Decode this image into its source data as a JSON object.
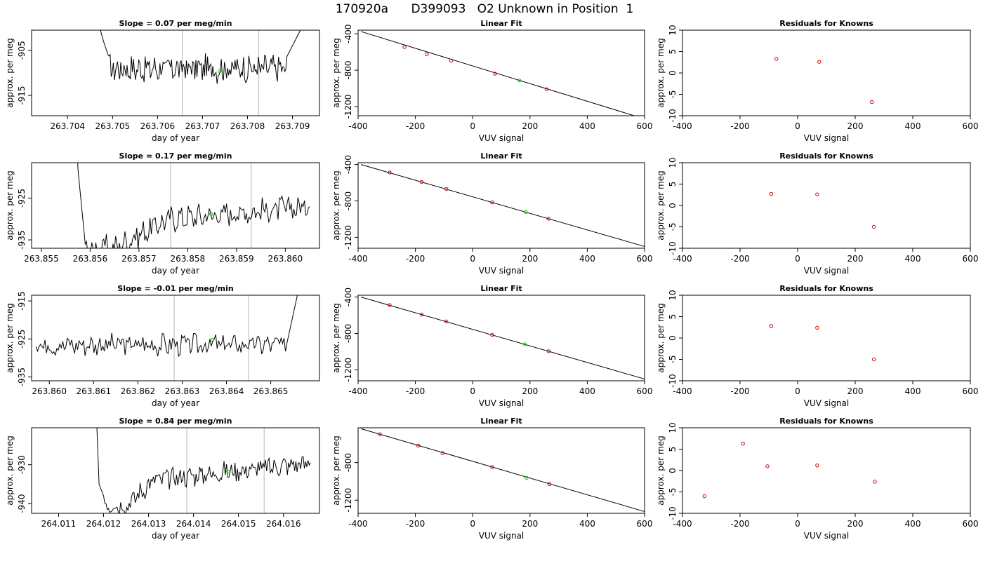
{
  "page_title": "170920a      D399093   O2 Unknown in Position  1",
  "colors": {
    "series_line": "#000000",
    "known_points": "#cc0000",
    "unknown_point": "#00cc00",
    "vertical_markers": "#bfbfbf"
  },
  "chart_data": [
    {
      "type": "line",
      "row": 0,
      "col": 0,
      "title": "Slope =  0.07  per meg/min",
      "xlabel": "day of year",
      "ylabel": "approx. per meg",
      "xlim": [
        263.7032,
        263.7096
      ],
      "ylim": [
        -919.5,
        -900.5
      ],
      "xticks": [
        "263.704",
        "263.705",
        "263.706",
        "263.707",
        "263.708",
        "263.709"
      ],
      "xtick_values": [
        263.704,
        263.705,
        263.706,
        263.707,
        263.708,
        263.709
      ],
      "yticks": [
        "-905",
        "-915"
      ],
      "ytick_values": [
        -905,
        -915
      ],
      "vlines": [
        263.70655,
        263.70825
      ],
      "series_start": [
        263.7046,
        -870
      ],
      "series_level": -909.0,
      "series_amplitude": 2.6,
      "series_spikes": [
        [
          263.70466,
          -898
        ],
        [
          263.7048,
          -903
        ],
        [
          263.7049,
          -906
        ]
      ],
      "series_end": [
        263.7092,
        -900
      ],
      "series_end_from": 263.7089,
      "unknown_point": [
        263.70738,
        -909.6
      ]
    },
    {
      "type": "scatter_fit",
      "row": 0,
      "col": 1,
      "title": "Linear Fit",
      "xlabel": "VUV signal",
      "ylabel": "approx. per meg",
      "xlim": [
        -400,
        600
      ],
      "ylim": [
        -1300,
        -360
      ],
      "xticks": [
        "-400",
        "-200",
        "0",
        "200",
        "400",
        "600"
      ],
      "xtick_values": [
        -400,
        -200,
        0,
        200,
        400,
        600
      ],
      "yticks": [
        "-400",
        "-800",
        "-1200"
      ],
      "ytick_values": [
        -400,
        -800,
        -1200
      ],
      "fit_line": [
        [
          -390,
          -375
        ],
        [
          610,
          -1345
        ]
      ],
      "known_points": [
        [
          -238,
          -545
        ],
        [
          -160,
          -625
        ],
        [
          -75,
          -695
        ],
        [
          78,
          -838
        ],
        [
          258,
          -1010
        ]
      ],
      "unknown_point": [
        163,
        -913
      ]
    },
    {
      "type": "scatter",
      "row": 0,
      "col": 2,
      "title": "Residuals for Knowns",
      "xlabel": "VUV signal",
      "ylabel": "approx. per meg",
      "xlim": [
        -400,
        600
      ],
      "ylim": [
        -10,
        10
      ],
      "xticks": [
        "-400",
        "-200",
        "0",
        "200",
        "400",
        "600"
      ],
      "xtick_values": [
        -400,
        -200,
        0,
        200,
        400,
        600
      ],
      "yticks": [
        "-10",
        "-5",
        "0",
        "5",
        "10"
      ],
      "ytick_values": [
        -10,
        -5,
        0,
        5,
        10
      ],
      "known_points": [
        [
          -74,
          3.3
        ],
        [
          75,
          2.6
        ],
        [
          258,
          -6.8
        ]
      ]
    },
    {
      "type": "line",
      "row": 1,
      "col": 0,
      "title": "Slope =  0.17  per meg/min",
      "xlabel": "day of year",
      "ylabel": "approx. per meg",
      "xlim": [
        263.8548,
        263.8607
      ],
      "ylim": [
        -937,
        -916.5
      ],
      "xticks": [
        "263.855",
        "263.856",
        "263.857",
        "263.858",
        "263.859",
        "263.860"
      ],
      "xtick_values": [
        263.855,
        263.856,
        263.857,
        263.858,
        263.859,
        263.86
      ],
      "yticks": [
        "-925",
        "-935"
      ],
      "ytick_values": [
        -925,
        -935
      ],
      "vlines": [
        263.85765,
        263.8593
      ],
      "series_start": [
        263.8557,
        -900
      ],
      "series_level": -928.5,
      "series_amplitude": 2.6,
      "series_spikes": [
        [
          263.8557,
          -900
        ],
        [
          263.85575,
          -918
        ],
        [
          263.8559,
          -936
        ]
      ],
      "series_ramp": [
        [
          263.8565,
          -937
        ],
        [
          263.8576,
          -930
        ],
        [
          263.8605,
          -927
        ]
      ],
      "series_end": [
        263.8605,
        -927
      ],
      "series_end_from": 263.8605,
      "unknown_point": [
        263.85848,
        -928.8
      ]
    },
    {
      "type": "scatter_fit",
      "row": 1,
      "col": 1,
      "title": "Linear Fit",
      "xlabel": "VUV signal",
      "ylabel": "approx. per meg",
      "xlim": [
        -400,
        600
      ],
      "ylim": [
        -1320,
        -380
      ],
      "xticks": [
        "-400",
        "-200",
        "0",
        "200",
        "400",
        "600"
      ],
      "xtick_values": [
        -400,
        -200,
        0,
        200,
        400,
        600
      ],
      "yticks": [
        "-400",
        "-800",
        "-1200"
      ],
      "ytick_values": [
        -400,
        -800,
        -1200
      ],
      "fit_line": [
        [
          -390,
          -400
        ],
        [
          610,
          -1310
        ]
      ],
      "known_points": [
        [
          -290,
          -488
        ],
        [
          -178,
          -592
        ],
        [
          -92,
          -668
        ],
        [
          68,
          -816
        ],
        [
          265,
          -995
        ]
      ],
      "unknown_point": [
        185,
        -922
      ]
    },
    {
      "type": "scatter",
      "row": 1,
      "col": 2,
      "title": "Residuals for Knowns",
      "xlabel": "VUV signal",
      "ylabel": "approx. per meg",
      "xlim": [
        -400,
        600
      ],
      "ylim": [
        -10,
        10
      ],
      "xticks": [
        "-400",
        "-200",
        "0",
        "200",
        "400",
        "600"
      ],
      "xtick_values": [
        -400,
        -200,
        0,
        200,
        400,
        600
      ],
      "yticks": [
        "-10",
        "-5",
        "0",
        "5",
        "10"
      ],
      "ytick_values": [
        -10,
        -5,
        0,
        5,
        10
      ],
      "known_points": [
        [
          -92,
          2.7
        ],
        [
          68,
          2.6
        ],
        [
          265,
          -5.0
        ]
      ]
    },
    {
      "type": "line",
      "row": 2,
      "col": 0,
      "title": "Slope =  -0.01  per meg/min",
      "xlabel": "day of year",
      "ylabel": "approx. per meg",
      "xlim": [
        263.8596,
        263.8661
      ],
      "ylim": [
        -936,
        -913.5
      ],
      "xticks": [
        "263.860",
        "263.861",
        "263.862",
        "263.863",
        "263.864",
        "263.865"
      ],
      "xtick_values": [
        263.86,
        263.861,
        263.862,
        263.863,
        263.864,
        263.865
      ],
      "yticks": [
        "-915",
        "-925",
        "-935"
      ],
      "ytick_values": [
        -915,
        -925,
        -935
      ],
      "vlines": [
        263.86282,
        263.8645
      ],
      "series_start": [
        263.8597,
        -927
      ],
      "series_level": -926.5,
      "series_amplitude": 2.4,
      "series_spikes": [],
      "series_end": [
        263.8656,
        -913.5
      ],
      "series_end_from": 263.8654,
      "unknown_point": [
        263.86368,
        -925.2
      ]
    },
    {
      "type": "scatter_fit",
      "row": 2,
      "col": 1,
      "title": "Linear Fit",
      "xlabel": "VUV signal",
      "ylabel": "approx. per meg",
      "xlim": [
        -400,
        600
      ],
      "ylim": [
        -1320,
        -380
      ],
      "xticks": [
        "-400",
        "-200",
        "0",
        "200",
        "400",
        "600"
      ],
      "xtick_values": [
        -400,
        -200,
        0,
        200,
        400,
        600
      ],
      "yticks": [
        "-400",
        "-800",
        "-1200"
      ],
      "ytick_values": [
        -400,
        -800,
        -1200
      ],
      "fit_line": [
        [
          -390,
          -400
        ],
        [
          610,
          -1310
        ]
      ],
      "known_points": [
        [
          -290,
          -488
        ],
        [
          -178,
          -592
        ],
        [
          -92,
          -668
        ],
        [
          68,
          -816
        ],
        [
          265,
          -995
        ]
      ],
      "unknown_point": [
        182,
        -920
      ]
    },
    {
      "type": "scatter",
      "row": 2,
      "col": 2,
      "title": "Residuals for Knowns",
      "xlabel": "VUV signal",
      "ylabel": "approx. per meg",
      "xlim": [
        -400,
        600
      ],
      "ylim": [
        -10,
        10
      ],
      "xticks": [
        "-400",
        "-200",
        "0",
        "200",
        "400",
        "600"
      ],
      "xtick_values": [
        -400,
        -200,
        0,
        200,
        400,
        600
      ],
      "yticks": [
        "-10",
        "-5",
        "0",
        "5",
        "10"
      ],
      "ytick_values": [
        -10,
        -5,
        0,
        5,
        10
      ],
      "known_points": [
        [
          -92,
          2.8
        ],
        [
          68,
          2.4
        ],
        [
          265,
          -5.0
        ]
      ]
    },
    {
      "type": "line",
      "row": 3,
      "col": 0,
      "title": "Slope =  0.84  per meg/min",
      "xlabel": "day of year",
      "ylabel": "approx. per meg",
      "xlim": [
        264.0104,
        264.0168
      ],
      "ylim": [
        -942.5,
        -920.5
      ],
      "xticks": [
        "264.011",
        "264.012",
        "264.013",
        "264.014",
        "264.015",
        "264.016"
      ],
      "xtick_values": [
        264.011,
        264.012,
        264.013,
        264.014,
        264.015,
        264.016
      ],
      "yticks": [
        "-930",
        "-940"
      ],
      "ytick_values": [
        -930,
        -940
      ],
      "vlines": [
        264.01385,
        264.01557
      ],
      "series_start": [
        264.0118,
        -905
      ],
      "series_level": -931.5,
      "series_amplitude": 2.3,
      "series_spikes": [
        [
          264.0118,
          -905
        ],
        [
          264.0119,
          -935
        ],
        [
          264.012,
          -938
        ]
      ],
      "series_ramp": [
        [
          264.0121,
          -940
        ],
        [
          264.0125,
          -940.5
        ],
        [
          264.0131,
          -934
        ],
        [
          264.0138,
          -933
        ],
        [
          264.0166,
          -929.5
        ]
      ],
      "series_end": [
        264.0166,
        -929.5
      ],
      "series_end_from": 264.0166,
      "unknown_point": [
        264.01477,
        -931.8
      ]
    },
    {
      "type": "scatter_fit",
      "row": 3,
      "col": 1,
      "title": "Linear Fit",
      "xlabel": "VUV signal",
      "ylabel": "approx. per meg",
      "xlim": [
        -400,
        600
      ],
      "ylim": [
        -1340,
        -430
      ],
      "xticks": [
        "-400",
        "-200",
        "0",
        "200",
        "400",
        "600"
      ],
      "xtick_values": [
        -400,
        -200,
        0,
        200,
        400,
        600
      ],
      "yticks": [
        "-800",
        "-1200"
      ],
      "ytick_values": [
        -800,
        -1200
      ],
      "fit_line": [
        [
          -390,
          -440
        ],
        [
          610,
          -1330
        ]
      ],
      "known_points": [
        [
          -324,
          -500
        ],
        [
          -190,
          -620
        ],
        [
          -105,
          -700
        ],
        [
          68,
          -848
        ],
        [
          268,
          -1030
        ]
      ],
      "unknown_point": [
        188,
        -962
      ]
    },
    {
      "type": "scatter",
      "row": 3,
      "col": 2,
      "title": "Residuals for Knowns",
      "xlabel": "VUV signal",
      "ylabel": "approx. per meg",
      "xlim": [
        -400,
        600
      ],
      "ylim": [
        -10,
        10
      ],
      "xticks": [
        "-400",
        "-200",
        "0",
        "200",
        "400",
        "600"
      ],
      "xtick_values": [
        -400,
        -200,
        0,
        200,
        400,
        600
      ],
      "yticks": [
        "-10",
        "-5",
        "0",
        "5",
        "10"
      ],
      "ytick_values": [
        -10,
        -5,
        0,
        5,
        10
      ],
      "known_points": [
        [
          -324,
          -6.0
        ],
        [
          -190,
          6.3
        ],
        [
          -105,
          1.0
        ],
        [
          68,
          1.2
        ],
        [
          268,
          -2.6
        ]
      ]
    }
  ]
}
